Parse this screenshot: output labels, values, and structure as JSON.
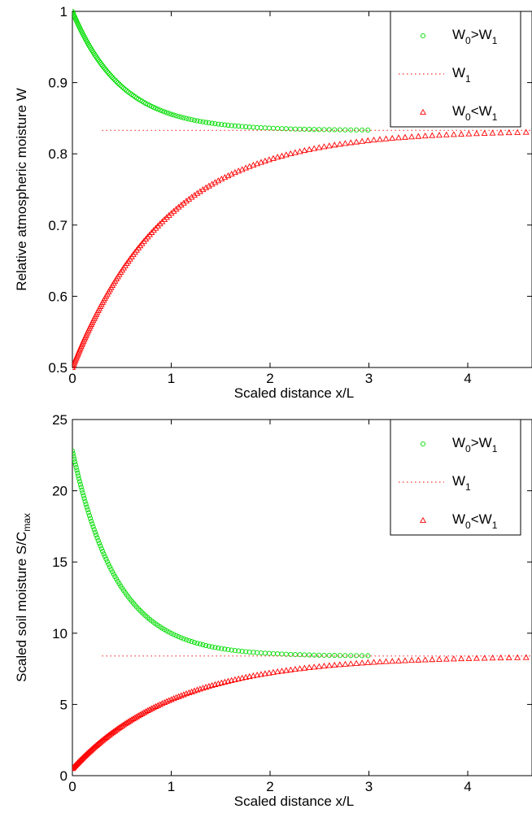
{
  "chart_data": [
    {
      "type": "scatter",
      "xlabel": "Scaled distance x/L",
      "ylabel": "Relative atmospheric moisture W",
      "xlim": [
        0,
        4.65
      ],
      "ylim": [
        0.5,
        1.0
      ],
      "xticks": [
        0,
        1,
        2,
        3,
        4
      ],
      "yticks": [
        0.5,
        0.6,
        0.7,
        0.8,
        0.9,
        1.0
      ],
      "ytick_labels": [
        "0.5",
        "0.6",
        "0.7",
        "0.8",
        "0.9",
        "1"
      ],
      "legend_position": "top-right",
      "series": [
        {
          "name": "W0>W1",
          "name_main": "W",
          "name_sub0": "0",
          "name_mid": ">W",
          "name_sub1": "1",
          "marker": "circle",
          "color": "#00dd00",
          "model": {
            "start": 1.0,
            "end": 0.833,
            "rate": 2.0
          },
          "x": [
            0,
            0.1,
            0.2,
            0.3,
            0.4,
            0.5,
            0.6,
            0.7,
            0.8,
            0.9,
            1.0,
            1.1,
            1.2,
            1.3,
            1.4,
            1.5,
            1.6,
            1.7,
            1.8,
            1.9,
            2.0,
            2.2,
            2.5,
            3.0
          ],
          "values": [
            1.0,
            0.97,
            0.945,
            0.924,
            0.908,
            0.895,
            0.884,
            0.874,
            0.866,
            0.86,
            0.856,
            0.852,
            0.848,
            0.845,
            0.843,
            0.841,
            0.84,
            0.839,
            0.838,
            0.837,
            0.837,
            0.835,
            0.834,
            0.833
          ]
        },
        {
          "name": "W1",
          "name_main": "W",
          "name_sub0": "1",
          "marker": "dotted-line",
          "color": "#ff3333",
          "x": [
            0.3,
            4.65
          ],
          "values": [
            0.833,
            0.833
          ]
        },
        {
          "name": "W0<W1",
          "name_main": "W",
          "name_sub0": "0",
          "name_mid": "<W",
          "name_sub1": "1",
          "marker": "triangle",
          "color": "#ff0000",
          "model": {
            "start": 0.5,
            "end": 0.833,
            "rate": 1.05
          },
          "x": [
            0,
            0.2,
            0.4,
            0.6,
            0.8,
            1.0,
            1.2,
            1.4,
            1.6,
            1.8,
            2.0,
            2.2,
            2.5,
            2.8,
            3.0,
            3.5,
            3.8,
            4.65
          ],
          "values": [
            0.5,
            0.55,
            0.6,
            0.64,
            0.68,
            0.712,
            0.74,
            0.764,
            0.784,
            0.8,
            0.809,
            0.816,
            0.822,
            0.827,
            0.829,
            0.831,
            0.832,
            0.833
          ]
        }
      ]
    },
    {
      "type": "scatter",
      "xlabel": "Scaled distance x/L",
      "ylabel": "Scaled soil moisture S/C",
      "ylabel_sub": "max",
      "xlim": [
        0,
        4.65
      ],
      "ylim": [
        0,
        25
      ],
      "xticks": [
        0,
        1,
        2,
        3,
        4
      ],
      "yticks": [
        0,
        5,
        10,
        15,
        20,
        25
      ],
      "ytick_labels": [
        "0",
        "5",
        "10",
        "15",
        "20",
        "25"
      ],
      "legend_position": "top-right",
      "series": [
        {
          "name": "W0>W1",
          "name_main": "W",
          "name_sub0": "0",
          "name_mid": ">W",
          "name_sub1": "1",
          "marker": "circle",
          "color": "#00dd00",
          "model": {
            "start": 22.8,
            "end": 8.4,
            "rate": 2.2
          },
          "x": [
            0,
            0.1,
            0.2,
            0.3,
            0.4,
            0.5,
            0.6,
            0.7,
            0.8,
            0.9,
            1.0,
            1.2,
            1.4,
            1.6,
            1.8,
            2.0,
            2.2,
            2.5,
            3.0
          ],
          "values": [
            22.8,
            19.8,
            17.5,
            15.7,
            14.2,
            13.0,
            12.0,
            11.2,
            10.5,
            10.0,
            9.6,
            9.2,
            8.9,
            8.7,
            8.6,
            8.5,
            8.45,
            8.42,
            8.4
          ]
        },
        {
          "name": "W1",
          "name_main": "W",
          "name_sub0": "1",
          "marker": "dotted-line",
          "color": "#ff3333",
          "x": [
            0.3,
            4.65
          ],
          "values": [
            8.4,
            8.4
          ]
        },
        {
          "name": "W0<W1",
          "name_main": "W",
          "name_sub0": "0",
          "name_mid": "<W",
          "name_sub1": "1",
          "marker": "triangle",
          "color": "#ff0000",
          "model": {
            "start": 0.5,
            "end": 8.4,
            "rate": 0.95
          },
          "x": [
            0,
            0.2,
            0.4,
            0.6,
            0.8,
            1.0,
            1.2,
            1.4,
            1.6,
            1.8,
            2.0,
            2.2,
            2.5,
            3.0,
            3.5,
            3.8,
            4.65
          ],
          "values": [
            0.5,
            1.1,
            1.9,
            2.7,
            3.5,
            4.3,
            5.0,
            5.8,
            6.4,
            7.0,
            7.4,
            7.7,
            7.95,
            8.2,
            8.32,
            8.36,
            8.4
          ]
        }
      ]
    }
  ]
}
